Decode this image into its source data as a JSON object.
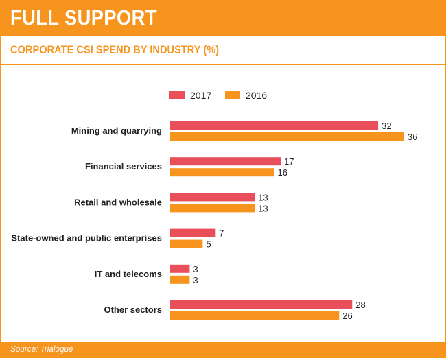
{
  "header": {
    "title": "FULL SUPPORT",
    "subtitle": "CORPORATE CSI SPEND BY INDUSTRY (%)"
  },
  "footer": {
    "source": "Source: Trialogue"
  },
  "colors": {
    "accent": "#f7941d",
    "series_2017": "#e84f5b",
    "series_2016": "#f7941d"
  },
  "chart_data": {
    "type": "bar",
    "orientation": "horizontal",
    "title": "CORPORATE CSI SPEND BY INDUSTRY (%)",
    "categories": [
      "Mining and quarrying",
      "Financial services",
      "Retail and wholesale",
      "State-owned and public enterprises",
      "IT and telecoms",
      "Other sectors"
    ],
    "series": [
      {
        "name": "2017",
        "values": [
          32,
          17,
          13,
          7,
          3,
          28
        ]
      },
      {
        "name": "2016",
        "values": [
          36,
          16,
          13,
          5,
          3,
          26
        ]
      }
    ],
    "xlim": [
      0,
      36
    ],
    "grid": false,
    "legend": "top-center",
    "data_labels": true
  }
}
